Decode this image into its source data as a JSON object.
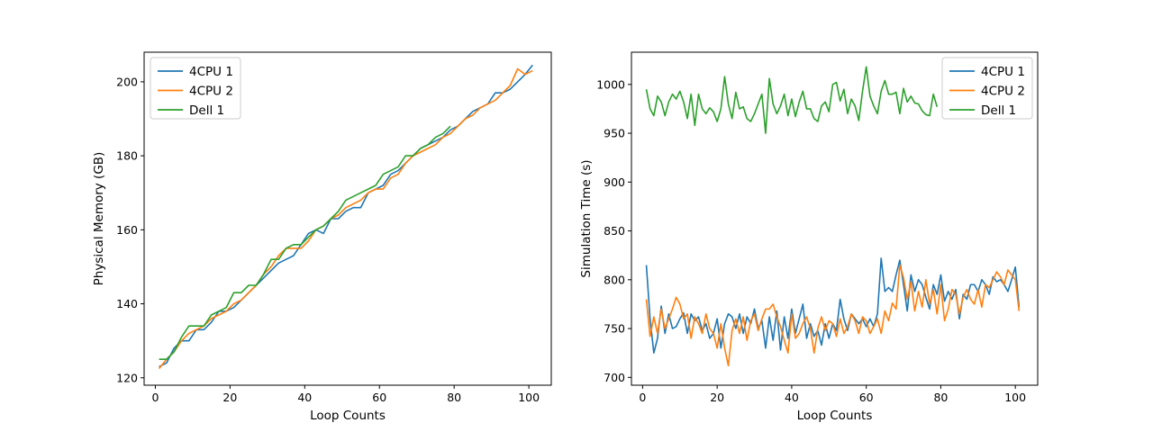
{
  "chart_data": [
    {
      "type": "line",
      "xlabel": "Loop Counts",
      "ylabel": "Physical Memory (GB)",
      "xlim": [
        -3,
        106
      ],
      "ylim": [
        118,
        208
      ],
      "xticks": [
        0,
        20,
        40,
        60,
        80,
        100
      ],
      "yticks": [
        120,
        140,
        160,
        180,
        200
      ],
      "legend": "upper-left",
      "grid": false,
      "series": [
        {
          "name": "4CPU 1",
          "color": "#1f77b4",
          "x": [
            1,
            3,
            5,
            7,
            9,
            11,
            13,
            15,
            17,
            19,
            21,
            23,
            25,
            27,
            29,
            31,
            33,
            35,
            37,
            39,
            41,
            43,
            45,
            47,
            49,
            51,
            53,
            55,
            57,
            59,
            61,
            63,
            65,
            67,
            69,
            71,
            73,
            75,
            77,
            79,
            81,
            83,
            85,
            87,
            89,
            91,
            93,
            95,
            97,
            99,
            101
          ],
          "y": [
            123,
            124,
            128,
            130,
            130,
            133,
            133,
            135,
            138,
            138,
            139,
            141,
            143,
            145,
            147,
            149,
            151,
            152,
            153,
            156,
            159,
            160,
            159,
            163,
            163,
            165,
            166,
            166,
            170,
            171,
            172,
            175,
            176,
            178,
            180,
            182,
            183,
            184,
            185,
            187,
            188,
            190,
            192,
            193,
            194,
            197,
            197,
            198,
            200,
            202,
            204.5
          ]
        },
        {
          "name": "4CPU 2",
          "color": "#ff7f0e",
          "x": [
            1,
            3,
            5,
            7,
            9,
            11,
            13,
            15,
            17,
            19,
            21,
            23,
            25,
            27,
            29,
            31,
            33,
            35,
            37,
            39,
            41,
            43,
            45,
            47,
            49,
            51,
            53,
            55,
            57,
            59,
            61,
            63,
            65,
            67,
            69,
            71,
            73,
            75,
            77,
            79,
            81,
            83,
            85,
            87,
            89,
            91,
            93,
            95,
            97,
            99,
            101
          ],
          "y": [
            122.5,
            125,
            127,
            130,
            132,
            133,
            134,
            136,
            137,
            138,
            140,
            141,
            143,
            145,
            148,
            150,
            153,
            155,
            155,
            155,
            157,
            160,
            161,
            163,
            164,
            166,
            167,
            168,
            170,
            171,
            171,
            174,
            175,
            178,
            180,
            181,
            182,
            183,
            185,
            186,
            188,
            190,
            191,
            193,
            194,
            195,
            197,
            199,
            203.5,
            202,
            203
          ]
        },
        {
          "name": "Dell 1",
          "color": "#2ca02c",
          "x": [
            1,
            3,
            5,
            7,
            9,
            11,
            13,
            15,
            17,
            19,
            21,
            23,
            25,
            27,
            29,
            31,
            33,
            35,
            37,
            39,
            41,
            43,
            45,
            47,
            49,
            51,
            53,
            55,
            57,
            59,
            61,
            63,
            65,
            67,
            69,
            71,
            73,
            75,
            77,
            79
          ],
          "y": [
            125,
            125,
            127,
            131,
            134,
            134,
            134,
            137,
            138,
            139,
            143,
            143,
            145,
            145,
            148,
            152,
            152,
            155,
            156,
            156,
            158,
            160,
            161,
            163,
            165,
            168,
            169,
            170,
            171,
            172,
            175,
            176,
            177,
            180,
            180,
            182,
            183,
            185,
            186,
            188
          ]
        }
      ]
    },
    {
      "type": "line",
      "xlabel": "Loop Counts",
      "ylabel": "Simulation Time (s)",
      "xlim": [
        -3,
        106
      ],
      "ylim": [
        692,
        1033
      ],
      "xticks": [
        0,
        20,
        40,
        60,
        80,
        100
      ],
      "yticks": [
        700,
        750,
        800,
        850,
        900,
        950,
        1000
      ],
      "legend": "upper-right",
      "grid": false,
      "series": [
        {
          "name": "4CPU 1",
          "color": "#1f77b4",
          "x": [
            1,
            2,
            3,
            4,
            5,
            6,
            7,
            8,
            9,
            10,
            11,
            12,
            13,
            14,
            15,
            16,
            17,
            18,
            19,
            20,
            21,
            22,
            23,
            24,
            25,
            26,
            27,
            28,
            29,
            30,
            31,
            32,
            33,
            34,
            35,
            36,
            37,
            38,
            39,
            40,
            41,
            42,
            43,
            44,
            45,
            46,
            47,
            48,
            49,
            50,
            51,
            52,
            53,
            54,
            55,
            56,
            57,
            58,
            59,
            60,
            61,
            62,
            63,
            64,
            65,
            66,
            67,
            68,
            69,
            70,
            71,
            72,
            73,
            74,
            75,
            76,
            77,
            78,
            79,
            80,
            81,
            82,
            83,
            84,
            85,
            86,
            87,
            88,
            89,
            90,
            91,
            92,
            93,
            94,
            95,
            96,
            97,
            98,
            99,
            100,
            101
          ],
          "y": [
            815,
            760,
            725,
            740,
            773,
            745,
            765,
            750,
            752,
            760,
            766,
            745,
            765,
            758,
            762,
            748,
            755,
            740,
            745,
            760,
            730,
            755,
            765,
            762,
            750,
            765,
            745,
            762,
            755,
            770,
            750,
            758,
            730,
            762,
            738,
            768,
            728,
            762,
            740,
            770,
            745,
            760,
            775,
            740,
            755,
            742,
            748,
            733,
            755,
            740,
            755,
            748,
            780,
            760,
            748,
            765,
            760,
            755,
            760,
            752,
            760,
            752,
            765,
            822,
            788,
            792,
            788,
            805,
            820,
            795,
            768,
            805,
            788,
            800,
            795,
            782,
            770,
            795,
            785,
            805,
            778,
            788,
            780,
            790,
            760,
            785,
            780,
            795,
            795,
            788,
            800,
            795,
            785,
            803,
            798,
            800,
            795,
            788,
            800,
            813,
            772
          ]
        },
        {
          "name": "4CPU 2",
          "color": "#ff7f0e",
          "x": [
            1,
            2,
            3,
            4,
            5,
            6,
            7,
            8,
            9,
            10,
            11,
            12,
            13,
            14,
            15,
            16,
            17,
            18,
            19,
            20,
            21,
            22,
            23,
            24,
            25,
            26,
            27,
            28,
            29,
            30,
            31,
            32,
            33,
            34,
            35,
            36,
            37,
            38,
            39,
            40,
            41,
            42,
            43,
            44,
            45,
            46,
            47,
            48,
            49,
            50,
            51,
            52,
            53,
            54,
            55,
            56,
            57,
            58,
            59,
            60,
            61,
            62,
            63,
            64,
            65,
            66,
            67,
            68,
            69,
            70,
            71,
            72,
            73,
            74,
            75,
            76,
            77,
            78,
            79,
            80,
            81,
            82,
            83,
            84,
            85,
            86,
            87,
            88,
            89,
            90,
            91,
            92,
            93,
            94,
            95,
            96,
            97,
            98,
            99,
            100,
            101
          ],
          "y": [
            780,
            742,
            762,
            745,
            770,
            750,
            760,
            770,
            782,
            775,
            760,
            765,
            740,
            762,
            755,
            745,
            765,
            750,
            745,
            730,
            755,
            730,
            712,
            748,
            760,
            745,
            762,
            738,
            758,
            765,
            748,
            760,
            770,
            770,
            775,
            762,
            752,
            738,
            725,
            765,
            740,
            745,
            755,
            762,
            750,
            725,
            750,
            762,
            748,
            758,
            755,
            742,
            760,
            745,
            752,
            765,
            758,
            745,
            762,
            758,
            745,
            752,
            760,
            745,
            768,
            758,
            776,
            770,
            815,
            802,
            780,
            798,
            768,
            788,
            772,
            800,
            775,
            790,
            765,
            795,
            758,
            770,
            790,
            785,
            765,
            782,
            790,
            780,
            775,
            790,
            772,
            795,
            792,
            800,
            808,
            803,
            795,
            810,
            805,
            800,
            768
          ]
        },
        {
          "name": "Dell 1",
          "color": "#2ca02c",
          "x": [
            1,
            2,
            3,
            4,
            5,
            6,
            7,
            8,
            9,
            10,
            11,
            12,
            13,
            14,
            15,
            16,
            17,
            18,
            19,
            20,
            21,
            22,
            23,
            24,
            25,
            26,
            27,
            28,
            29,
            30,
            31,
            32,
            33,
            34,
            35,
            36,
            37,
            38,
            39,
            40,
            41,
            42,
            43,
            44,
            45,
            46,
            47,
            48,
            49,
            50,
            51,
            52,
            53,
            54,
            55,
            56,
            57,
            58,
            59,
            60,
            61,
            62,
            63,
            64,
            65,
            66,
            67,
            68,
            69,
            70,
            71,
            72,
            73,
            74,
            75,
            76,
            77,
            78,
            79
          ],
          "y": [
            995,
            975,
            968,
            988,
            982,
            968,
            982,
            990,
            985,
            993,
            982,
            965,
            990,
            958,
            990,
            975,
            970,
            976,
            972,
            962,
            975,
            1008,
            980,
            965,
            992,
            975,
            977,
            965,
            962,
            970,
            980,
            990,
            950,
            1006,
            980,
            970,
            978,
            990,
            968,
            985,
            967,
            982,
            993,
            975,
            975,
            965,
            962,
            978,
            982,
            972,
            1000,
            1002,
            983,
            995,
            970,
            985,
            978,
            963,
            993,
            1018,
            988,
            978,
            970,
            993,
            1004,
            990,
            990,
            992,
            970,
            996,
            982,
            988,
            981,
            980,
            973,
            969,
            968,
            990,
            977
          ]
        }
      ]
    }
  ]
}
